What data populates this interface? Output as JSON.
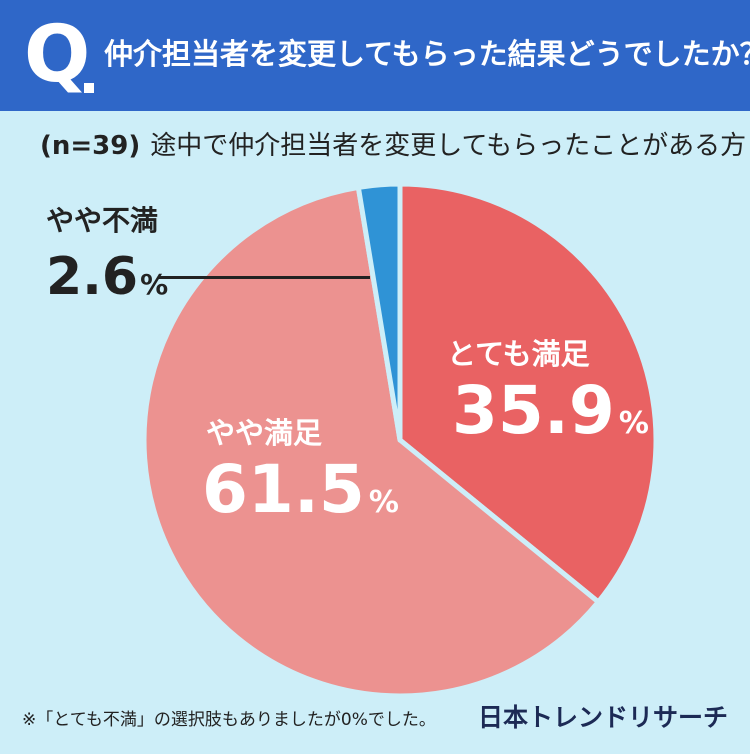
{
  "header": {
    "q_letter": "Q",
    "question": "仲介担当者を変更してもらった結果どうでしたか？"
  },
  "subheader": {
    "n_label": "(n=39)",
    "description": "途中で仲介担当者を変更してもらったことがある方"
  },
  "chart_data": {
    "type": "pie",
    "title": "",
    "start_angle_deg": 0,
    "direction": "clockwise",
    "slices": [
      {
        "label": "とても満足",
        "value": 35.9,
        "display": "35.9",
        "unit": "%",
        "color": "#e96263"
      },
      {
        "label": "やや満足",
        "value": 61.5,
        "display": "61.5",
        "unit": "%",
        "color": "#ec9290"
      },
      {
        "label": "やや不満",
        "value": 2.6,
        "display": "2.6",
        "unit": "%",
        "color": "#2f93d6"
      }
    ]
  },
  "footnote": "※「とても不満」の選択肢もありましたが0%でした。",
  "logo": "日本トレンドリサーチ"
}
